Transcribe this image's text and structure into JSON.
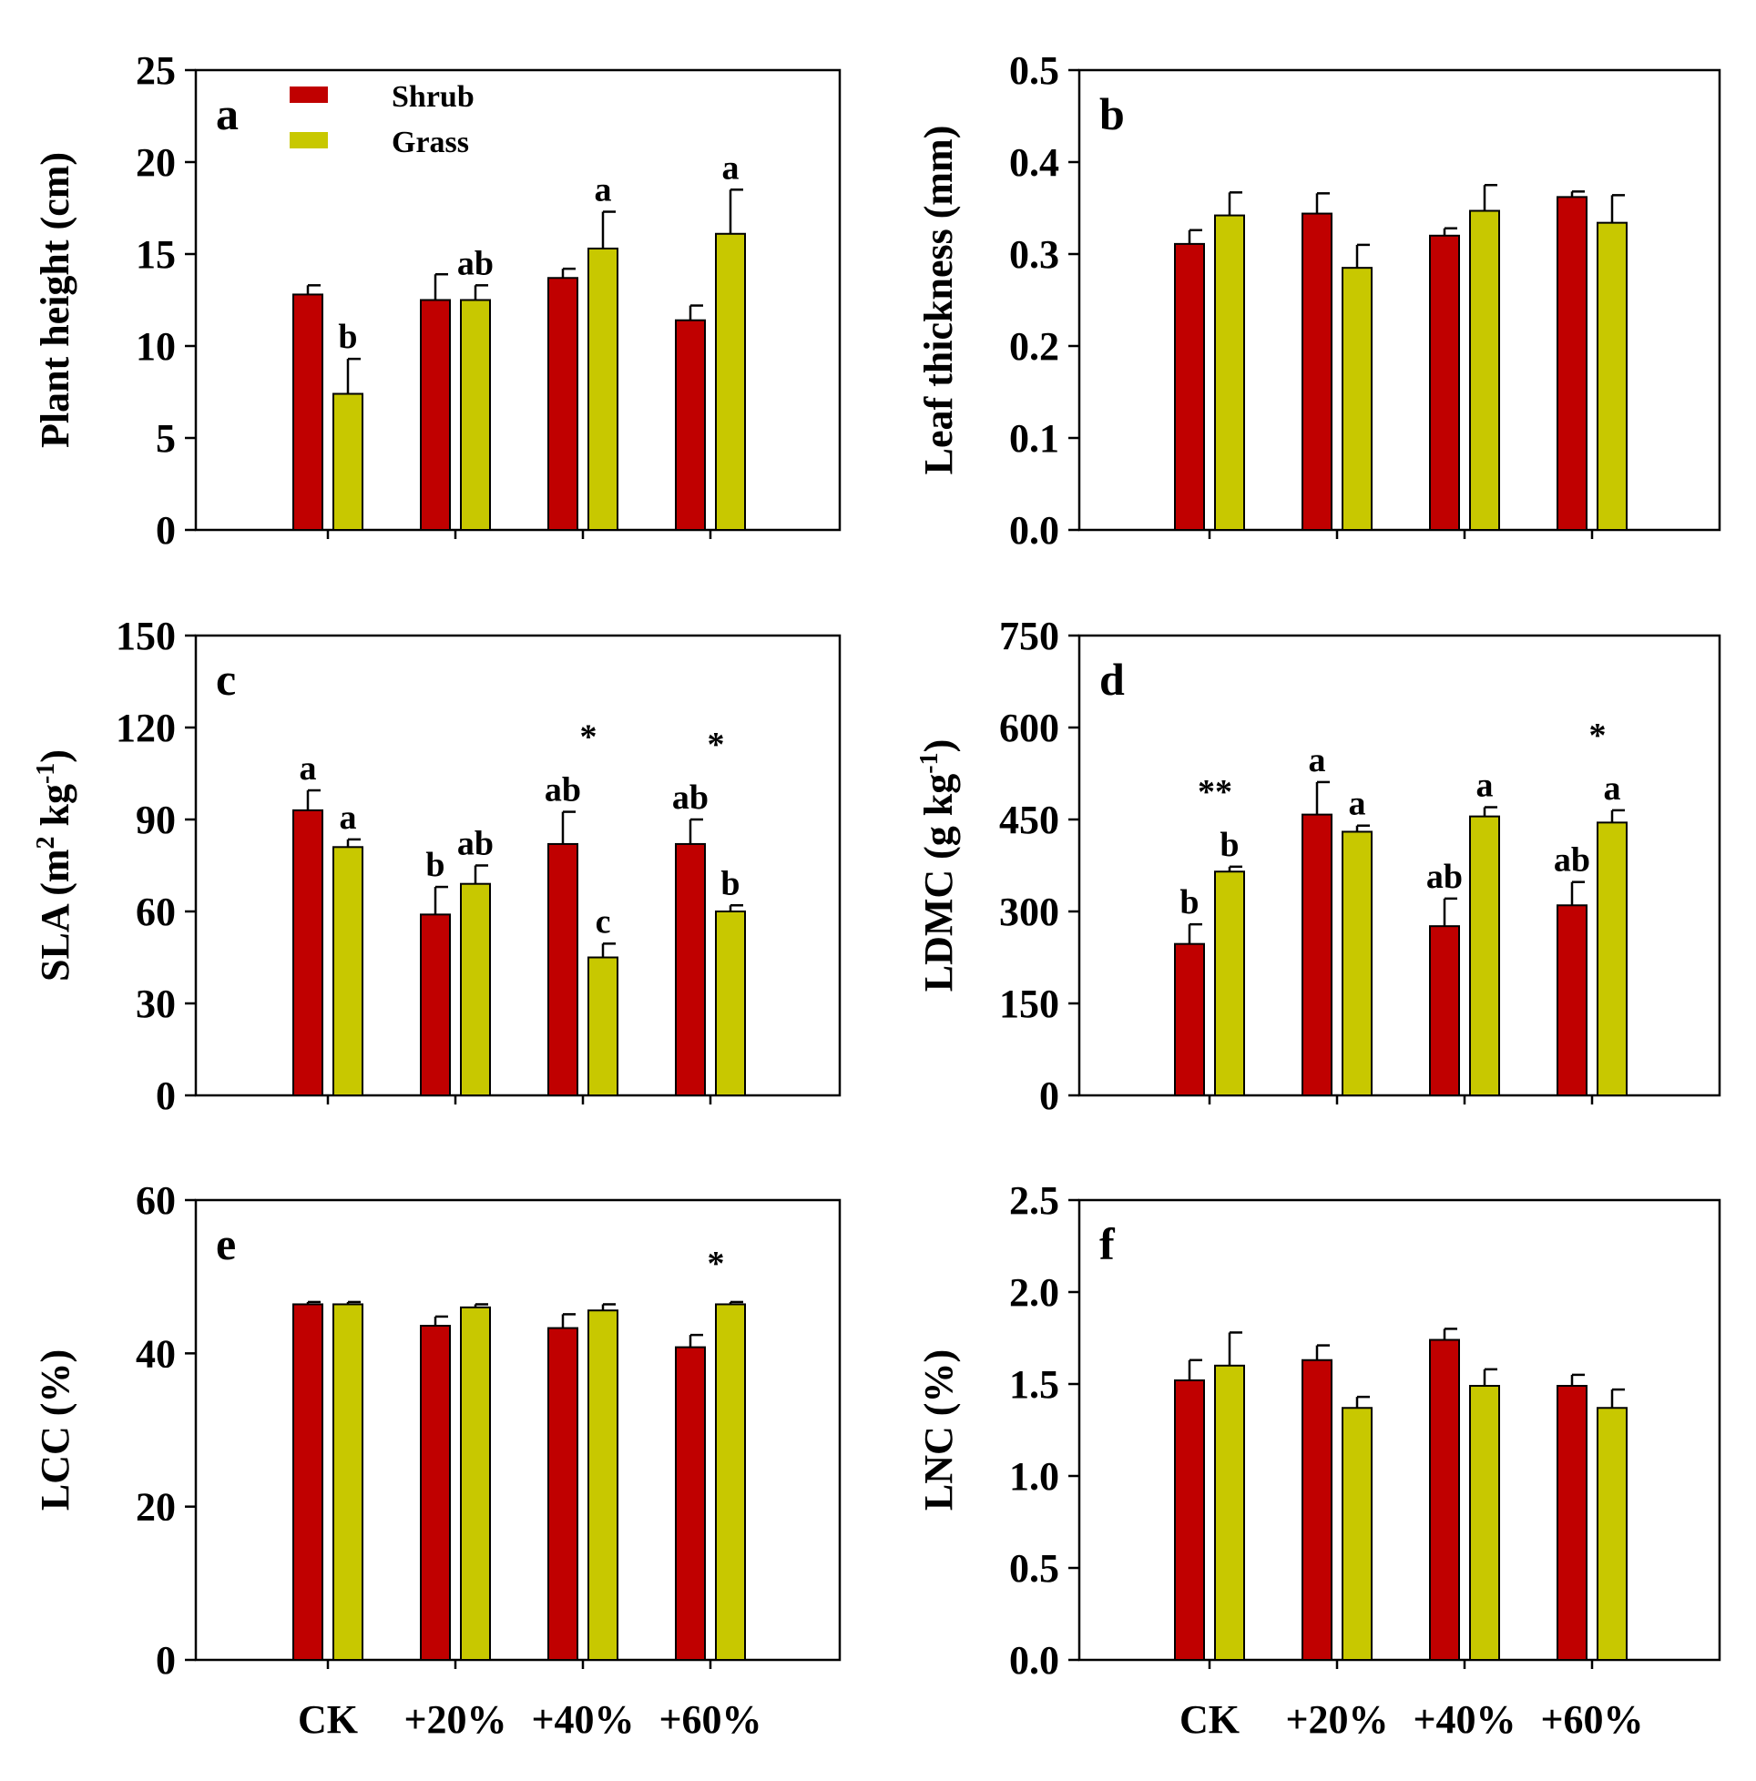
{
  "colors": {
    "shrub": "#c00000",
    "grass": "#c8c800",
    "axis": "#000000"
  },
  "legend": [
    {
      "name": "Shrub",
      "color_key": "shrub"
    },
    {
      "name": "Grass",
      "color_key": "grass"
    }
  ],
  "chart_data": [
    {
      "type": "bar",
      "panel": "a",
      "ylabel": "Plant height (cm)",
      "ylim": [
        0,
        25
      ],
      "yticks": [
        0,
        5,
        10,
        15,
        20,
        25
      ],
      "categories": [
        "CK",
        "+20%",
        "+40%",
        "+60%"
      ],
      "series": [
        {
          "name": "Shrub",
          "values": [
            12.8,
            12.5,
            13.7,
            11.4
          ],
          "errors": [
            0.5,
            1.4,
            0.5,
            0.8
          ],
          "labels": [
            "",
            "",
            "",
            ""
          ]
        },
        {
          "name": "Grass",
          "values": [
            7.4,
            12.5,
            15.3,
            16.1
          ],
          "errors": [
            1.9,
            0.8,
            2.0,
            2.4
          ],
          "labels": [
            "b",
            "ab",
            "a",
            "a"
          ]
        }
      ],
      "stars": [
        "",
        "",
        "",
        ""
      ]
    },
    {
      "type": "bar",
      "panel": "b",
      "ylabel": "Leaf thickness (mm)",
      "ylim": [
        0,
        0.5
      ],
      "yticks": [
        "0.0",
        "0.1",
        "0.2",
        "0.3",
        "0.4",
        "0.5"
      ],
      "categories": [
        "CK",
        "+20%",
        "+40%",
        "+60%"
      ],
      "series": [
        {
          "name": "Shrub",
          "values": [
            0.311,
            0.344,
            0.32,
            0.362
          ],
          "errors": [
            0.015,
            0.022,
            0.008,
            0.006
          ],
          "labels": [
            "",
            "",
            "",
            ""
          ]
        },
        {
          "name": "Grass",
          "values": [
            0.342,
            0.285,
            0.347,
            0.334
          ],
          "errors": [
            0.025,
            0.025,
            0.028,
            0.03
          ],
          "labels": [
            "",
            "",
            "",
            ""
          ]
        }
      ],
      "stars": [
        "",
        "",
        "",
        ""
      ]
    },
    {
      "type": "bar",
      "panel": "c",
      "ylabel": "SLA (m",
      "ylabel_parts": [
        "SLA (m",
        "2",
        " kg",
        "-1",
        ")"
      ],
      "ylim": [
        0,
        150
      ],
      "yticks": [
        0,
        30,
        60,
        90,
        120,
        150
      ],
      "categories": [
        "CK",
        "+20%",
        "+40%",
        "+60%"
      ],
      "series": [
        {
          "name": "Shrub",
          "values": [
            93,
            59,
            82,
            82
          ],
          "errors": [
            6.5,
            9.0,
            10.5,
            8.0
          ],
          "labels": [
            "a",
            "b",
            "ab",
            "ab"
          ]
        },
        {
          "name": "Grass",
          "values": [
            81,
            69,
            45,
            60
          ],
          "errors": [
            2.5,
            6.0,
            4.5,
            2.0
          ],
          "labels": [
            "a",
            "ab",
            "c",
            "b"
          ]
        }
      ],
      "stars": [
        "",
        "",
        "*",
        "*"
      ]
    },
    {
      "type": "bar",
      "panel": "d",
      "ylabel": "LDMC (g",
      "ylabel_parts": [
        "LDMC (g kg",
        "-1",
        ")"
      ],
      "ylim": [
        0,
        750
      ],
      "yticks": [
        0,
        150,
        300,
        450,
        600,
        750
      ],
      "categories": [
        "CK",
        "+20%",
        "+40%",
        "+60%"
      ],
      "series": [
        {
          "name": "Shrub",
          "values": [
            247,
            458,
            276,
            310
          ],
          "errors": [
            32,
            53,
            45,
            38
          ],
          "labels": [
            "b",
            "a",
            "ab",
            "ab"
          ]
        },
        {
          "name": "Grass",
          "values": [
            365,
            430,
            455,
            445
          ],
          "errors": [
            8,
            10,
            15,
            20
          ],
          "labels": [
            "b",
            "a",
            "a",
            "a"
          ]
        }
      ],
      "stars": [
        "**",
        "",
        "",
        "*"
      ]
    },
    {
      "type": "bar",
      "panel": "e",
      "ylabel": "LCC (%)",
      "ylim": [
        0,
        60
      ],
      "yticks": [
        0,
        20,
        40,
        60
      ],
      "categories": [
        "CK",
        "+20%",
        "+40%",
        "+60%"
      ],
      "series": [
        {
          "name": "Shrub",
          "values": [
            46.4,
            43.6,
            43.3,
            40.8
          ],
          "errors": [
            0.3,
            1.2,
            1.8,
            1.6
          ],
          "labels": [
            "",
            "",
            "",
            ""
          ]
        },
        {
          "name": "Grass",
          "values": [
            46.4,
            46.0,
            45.6,
            46.4
          ],
          "errors": [
            0.3,
            0.4,
            0.8,
            0.3
          ],
          "labels": [
            "",
            "",
            "",
            ""
          ]
        }
      ],
      "stars": [
        "",
        "",
        "",
        "*"
      ]
    },
    {
      "type": "bar",
      "panel": "f",
      "ylabel": "LNC (%)",
      "ylim": [
        0,
        2.5
      ],
      "yticks": [
        "0.0",
        "0.5",
        "1.0",
        "1.5",
        "2.0",
        "2.5"
      ],
      "categories": [
        "CK",
        "+20%",
        "+40%",
        "+60%"
      ],
      "series": [
        {
          "name": "Shrub",
          "values": [
            1.52,
            1.63,
            1.74,
            1.49
          ],
          "errors": [
            0.11,
            0.08,
            0.06,
            0.06
          ],
          "labels": [
            "",
            "",
            "",
            ""
          ]
        },
        {
          "name": "Grass",
          "values": [
            1.6,
            1.37,
            1.49,
            1.37
          ],
          "errors": [
            0.18,
            0.06,
            0.09,
            0.1
          ],
          "labels": [
            "",
            "",
            "",
            ""
          ]
        }
      ],
      "stars": [
        "",
        "",
        "",
        ""
      ]
    }
  ]
}
